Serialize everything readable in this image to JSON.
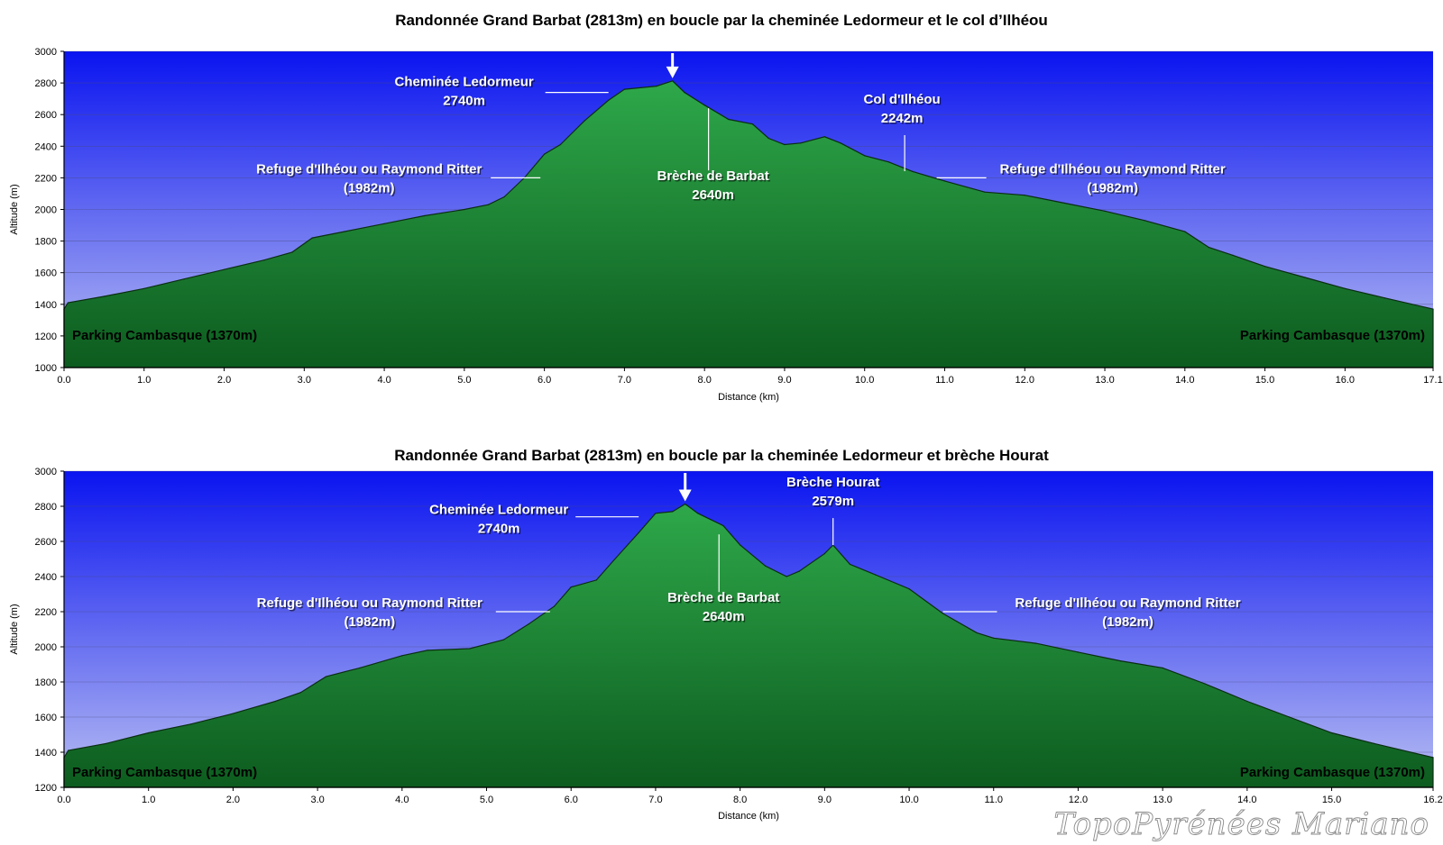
{
  "watermark": "TopoPyrénées Mariano",
  "chart_data": [
    {
      "type": "area",
      "title": "Randonnée Grand Barbat (2813m) en boucle par la cheminée Ledormeur et le col d’Ilhéou",
      "xlabel": "Distance    (km)",
      "ylabel": "Altitude (m)",
      "xlim": [
        0,
        17.1
      ],
      "ylim": [
        1000,
        3000
      ],
      "xticks": [
        "0.0",
        "1.0",
        "2.0",
        "3.0",
        "4.0",
        "5.0",
        "6.0",
        "7.0",
        "8.0",
        "9.0",
        "10.0",
        "11.0",
        "12.0",
        "13.0",
        "14.0",
        "15.0",
        "16.0",
        "17.1"
      ],
      "yticks": [
        "1000",
        "1200",
        "1400",
        "1600",
        "1800",
        "2000",
        "2200",
        "2400",
        "2600",
        "2800",
        "3000"
      ],
      "grid": true,
      "colors": {
        "plot_top": "#0a14f0",
        "plot_bottom": "#b8bef2",
        "fill_top": "#2ea84a",
        "fill_bottom": "#0d5c1f",
        "outline": "#0b2e12"
      },
      "x": [
        0.0,
        0.05,
        0.5,
        1.0,
        1.5,
        2.0,
        2.5,
        2.85,
        3.1,
        3.5,
        4.0,
        4.5,
        5.0,
        5.3,
        5.5,
        5.75,
        6.0,
        6.2,
        6.5,
        6.8,
        7.0,
        7.2,
        7.4,
        7.6,
        7.75,
        8.0,
        8.3,
        8.6,
        8.8,
        9.0,
        9.2,
        9.5,
        9.7,
        10.0,
        10.3,
        10.6,
        11.0,
        11.5,
        12.0,
        12.5,
        13.0,
        13.5,
        14.0,
        14.3,
        14.6,
        15.0,
        15.5,
        16.0,
        16.5,
        17.1
      ],
      "y": [
        1370,
        1410,
        1450,
        1500,
        1560,
        1620,
        1680,
        1730,
        1820,
        1860,
        1910,
        1960,
        2000,
        2030,
        2080,
        2200,
        2350,
        2410,
        2560,
        2690,
        2760,
        2770,
        2780,
        2813,
        2740,
        2660,
        2570,
        2540,
        2450,
        2410,
        2420,
        2460,
        2420,
        2340,
        2300,
        2240,
        2180,
        2110,
        2090,
        2040,
        1990,
        1930,
        1860,
        1760,
        1710,
        1640,
        1570,
        1500,
        1440,
        1370
      ],
      "annotations": [
        {
          "lines": [
            "Cheminée Ledormeur",
            "2740m"
          ],
          "x": 6.8,
          "y": 2740
        },
        {
          "lines": [
            "Brèche de Barbat",
            "2640m"
          ],
          "x": 8.05,
          "y": 2640
        },
        {
          "lines": [
            "Col d'Ilhéou",
            "2242m"
          ],
          "x": 10.5,
          "y": 2242
        },
        {
          "lines": [
            "Refuge d'Ilhéou ou Raymond Ritter",
            "(1982m)"
          ],
          "x": 5.95,
          "y": 2200
        },
        {
          "lines": [
            "Refuge d'Ilhéou ou Raymond Ritter",
            "(1982m)"
          ],
          "x": 10.9,
          "y": 2200
        }
      ],
      "summit_marker": {
        "x": 7.6,
        "y": 2813
      },
      "endpoint_labels": [
        "Parking Cambasque (1370m)",
        "Parking Cambasque (1370m)"
      ]
    },
    {
      "type": "area",
      "title": "Randonnée Grand Barbat (2813m) en boucle par la cheminée Ledormeur et brèche Hourat",
      "xlabel": "Distance    (km)",
      "ylabel": "Altitude (m)",
      "xlim": [
        0,
        16.2
      ],
      "ylim": [
        1200,
        3000
      ],
      "xticks": [
        "0.0",
        "1.0",
        "2.0",
        "3.0",
        "4.0",
        "5.0",
        "6.0",
        "7.0",
        "8.0",
        "9.0",
        "10.0",
        "11.0",
        "12.0",
        "13.0",
        "14.0",
        "15.0",
        "16.2"
      ],
      "yticks": [
        "1200",
        "1400",
        "1600",
        "1800",
        "2000",
        "2200",
        "2400",
        "2600",
        "2800",
        "3000"
      ],
      "grid": true,
      "colors": {
        "plot_top": "#0a14f0",
        "plot_bottom": "#b8bef2",
        "fill_top": "#2ea84a",
        "fill_bottom": "#0d5c1f",
        "outline": "#0b2e12"
      },
      "x": [
        0.0,
        0.05,
        0.5,
        1.0,
        1.5,
        2.0,
        2.5,
        2.8,
        3.1,
        3.5,
        4.0,
        4.3,
        4.8,
        5.2,
        5.5,
        5.8,
        6.0,
        6.3,
        6.5,
        6.8,
        7.0,
        7.2,
        7.35,
        7.5,
        7.8,
        8.0,
        8.3,
        8.55,
        8.7,
        9.0,
        9.1,
        9.3,
        9.6,
        10.0,
        10.4,
        10.8,
        11.0,
        11.5,
        12.0,
        12.5,
        13.0,
        13.5,
        14.0,
        14.5,
        15.0,
        15.5,
        16.2
      ],
      "y": [
        1370,
        1410,
        1450,
        1510,
        1560,
        1620,
        1690,
        1740,
        1830,
        1880,
        1950,
        1980,
        1990,
        2040,
        2130,
        2230,
        2340,
        2380,
        2490,
        2650,
        2760,
        2770,
        2813,
        2760,
        2690,
        2580,
        2460,
        2400,
        2430,
        2530,
        2579,
        2470,
        2410,
        2330,
        2190,
        2080,
        2050,
        2020,
        1970,
        1920,
        1880,
        1790,
        1690,
        1600,
        1510,
        1450,
        1370
      ],
      "annotations": [
        {
          "lines": [
            "Cheminée Ledormeur",
            "2740m"
          ],
          "x": 6.8,
          "y": 2740
        },
        {
          "lines": [
            "Brèche de Barbat",
            "2640m"
          ],
          "x": 7.75,
          "y": 2640
        },
        {
          "lines": [
            "Brèche Hourat",
            "2579m"
          ],
          "x": 9.1,
          "y": 2579
        },
        {
          "lines": [
            "Refuge d'Ilhéou ou Raymond Ritter",
            "(1982m)"
          ],
          "x": 5.75,
          "y": 2200
        },
        {
          "lines": [
            "Refuge d'Ilhéou ou Raymond Ritter",
            "(1982m)"
          ],
          "x": 10.4,
          "y": 2200
        }
      ],
      "summit_marker": {
        "x": 7.35,
        "y": 2813
      },
      "endpoint_labels": [
        "Parking Cambasque (1370m)",
        "Parking Cambasque (1370m)"
      ]
    }
  ]
}
